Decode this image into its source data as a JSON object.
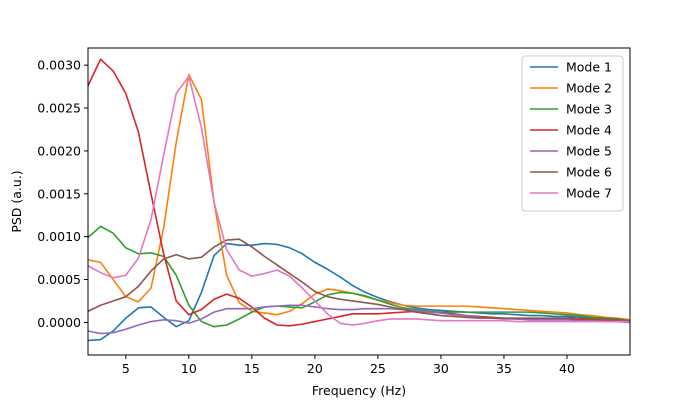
{
  "chart_data": {
    "type": "line",
    "title": "",
    "xlabel": "Frequency (Hz)",
    "ylabel": "PSD (a.u.)",
    "xlim": [
      2,
      45
    ],
    "ylim": [
      -0.00038,
      0.0032
    ],
    "xticks": [
      5,
      10,
      15,
      20,
      25,
      30,
      35,
      40
    ],
    "xtick_labels": [
      "5",
      "10",
      "15",
      "20",
      "25",
      "30",
      "35",
      "40"
    ],
    "yticks": [
      0,
      0.0005,
      0.001,
      0.0015,
      0.002,
      0.0025,
      0.003
    ],
    "ytick_labels": [
      "0.0000",
      "0.0005",
      "0.0010",
      "0.0015",
      "0.0020",
      "0.0025",
      "0.0030"
    ],
    "grid": false,
    "legend_position": "top-right",
    "x": [
      2,
      3,
      4,
      5,
      6,
      7,
      8,
      9,
      10,
      11,
      12,
      13,
      14,
      15,
      16,
      17,
      18,
      19,
      20,
      21,
      22,
      23,
      24,
      25,
      26,
      27,
      28,
      29,
      30,
      31,
      32,
      33,
      34,
      35,
      36,
      37,
      38,
      39,
      40,
      41,
      42,
      43,
      44,
      45
    ],
    "series": [
      {
        "name": "Mode 1",
        "color": "#1f77b4",
        "values": [
          -0.00021,
          -0.0002,
          -0.0001,
          5e-05,
          0.00017,
          0.00018,
          6e-05,
          -5e-05,
          2e-05,
          0.00035,
          0.00078,
          0.00092,
          0.0009,
          0.0009,
          0.00092,
          0.00091,
          0.00087,
          0.0008,
          0.0007,
          0.00062,
          0.00053,
          0.00043,
          0.00035,
          0.00029,
          0.00024,
          0.0002,
          0.00017,
          0.00015,
          0.00014,
          0.00013,
          0.00012,
          0.00011,
          0.0001,
          0.0001,
          9e-05,
          8e-05,
          8e-05,
          7e-05,
          7e-05,
          6e-05,
          5e-05,
          4e-05,
          3e-05,
          2e-05
        ]
      },
      {
        "name": "Mode 2",
        "color": "#ff7f0e",
        "values": [
          0.00073,
          0.0007,
          0.0005,
          0.0003,
          0.00024,
          0.0004,
          0.0011,
          0.0021,
          0.00289,
          0.0026,
          0.0014,
          0.00055,
          0.00023,
          0.00013,
          0.00011,
          9e-05,
          0.00013,
          0.00022,
          0.00033,
          0.00039,
          0.00037,
          0.00034,
          0.0003,
          0.00026,
          0.00023,
          0.0002,
          0.00019,
          0.00019,
          0.00019,
          0.00019,
          0.00019,
          0.00018,
          0.00017,
          0.00016,
          0.00015,
          0.00014,
          0.00013,
          0.00012,
          0.00011,
          9e-05,
          8e-05,
          6e-05,
          5e-05,
          3e-05
        ]
      },
      {
        "name": "Mode 3",
        "color": "#2ca02c",
        "values": [
          0.00099,
          0.00112,
          0.00104,
          0.00087,
          0.0008,
          0.00081,
          0.00077,
          0.00055,
          0.0002,
          1e-05,
          -5e-05,
          -3e-05,
          4e-05,
          0.00012,
          0.00018,
          0.00019,
          0.00018,
          0.00017,
          0.00024,
          0.00032,
          0.00035,
          0.00034,
          0.00031,
          0.00026,
          0.00021,
          0.00017,
          0.00015,
          0.00013,
          0.00012,
          0.00012,
          0.00012,
          0.00012,
          0.00012,
          0.00012,
          0.00012,
          0.00012,
          0.00011,
          0.0001,
          9e-05,
          8e-05,
          6e-05,
          5e-05,
          4e-05,
          2e-05
        ]
      },
      {
        "name": "Mode 4",
        "color": "#d62728",
        "values": [
          0.00276,
          0.00307,
          0.00293,
          0.00267,
          0.00222,
          0.0015,
          0.0008,
          0.00025,
          9e-05,
          0.00015,
          0.00027,
          0.00033,
          0.00028,
          0.00018,
          5e-05,
          -3e-05,
          -4e-05,
          -2e-05,
          1e-05,
          4e-05,
          7e-05,
          0.0001,
          0.0001,
          0.0001,
          0.00011,
          0.00012,
          0.00013,
          0.00012,
          0.00011,
          0.0001,
          8e-05,
          7e-05,
          6e-05,
          5e-05,
          4e-05,
          4e-05,
          4e-05,
          4e-05,
          4e-05,
          3e-05,
          3e-05,
          2e-05,
          2e-05,
          1e-05
        ]
      },
      {
        "name": "Mode 5",
        "color": "#9467bd",
        "values": [
          -0.0001,
          -0.00013,
          -0.00012,
          -8e-05,
          -3e-05,
          1e-05,
          3e-05,
          2e-05,
          -1e-05,
          4e-05,
          0.00012,
          0.00016,
          0.00016,
          0.00016,
          0.00018,
          0.00019,
          0.0002,
          0.0002,
          0.00018,
          0.00016,
          0.00015,
          0.00015,
          0.00016,
          0.00016,
          0.00016,
          0.00015,
          0.00014,
          0.00012,
          0.00011,
          9e-05,
          8e-05,
          6e-05,
          5e-05,
          4e-05,
          4e-05,
          3e-05,
          3e-05,
          3e-05,
          3e-05,
          2e-05,
          2e-05,
          1e-05,
          1e-05,
          0
        ]
      },
      {
        "name": "Mode 6",
        "color": "#8c564b",
        "values": [
          0.00013,
          0.0002,
          0.00025,
          0.0003,
          0.00042,
          0.0006,
          0.00074,
          0.00079,
          0.00074,
          0.00076,
          0.00088,
          0.00096,
          0.00097,
          0.00088,
          0.00077,
          0.00067,
          0.00057,
          0.00047,
          0.00036,
          0.0003,
          0.00027,
          0.00025,
          0.00023,
          0.00021,
          0.00018,
          0.00015,
          0.00012,
          0.0001,
          8e-05,
          7e-05,
          6e-05,
          5e-05,
          5e-05,
          5e-05,
          5e-05,
          5e-05,
          5e-05,
          5e-05,
          5e-05,
          5e-05,
          4e-05,
          4e-05,
          3e-05,
          2e-05
        ]
      },
      {
        "name": "Mode 7",
        "color": "#e377c2",
        "values": [
          0.00066,
          0.00058,
          0.00052,
          0.00055,
          0.00075,
          0.0012,
          0.00195,
          0.00267,
          0.00287,
          0.00227,
          0.0014,
          0.00085,
          0.00061,
          0.00054,
          0.00057,
          0.00061,
          0.00054,
          0.0004,
          0.00025,
          0.0001,
          -1e-05,
          -3e-05,
          -1e-05,
          2e-05,
          4e-05,
          4e-05,
          4e-05,
          3e-05,
          2e-05,
          2e-05,
          2e-05,
          2e-05,
          2e-05,
          2e-05,
          1e-05,
          1e-05,
          1e-05,
          1e-05,
          1e-05,
          1e-05,
          1e-05,
          1e-05,
          1e-05,
          1e-05
        ]
      }
    ]
  }
}
